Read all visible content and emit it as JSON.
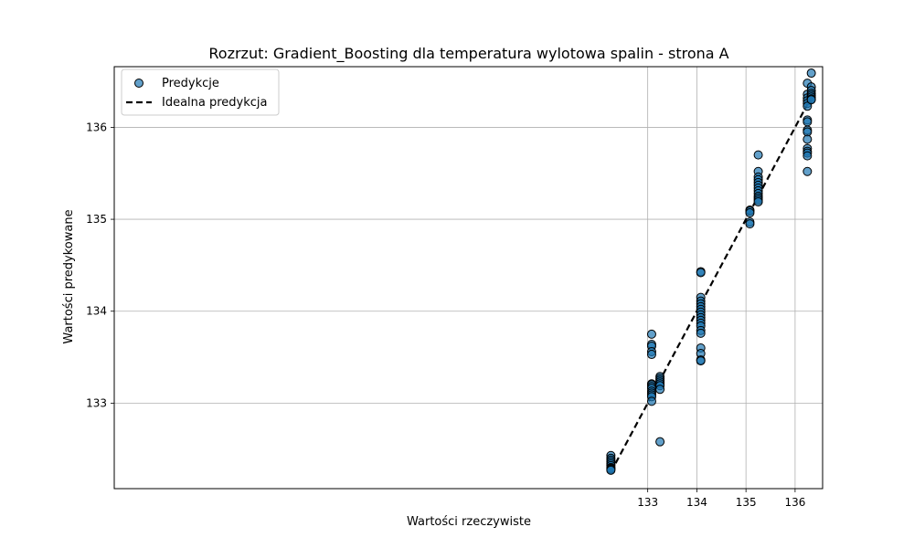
{
  "chart_data": {
    "type": "scatter",
    "title": "Rozrzut: Gradient_Boosting dla temperatura wylotowa spalin - strona A",
    "xlabel": "Wartości rzeczywiste",
    "ylabel": "Wartości predykowane",
    "xlim": [
      122.14,
      136.56
    ],
    "ylim": [
      132.07,
      136.66
    ],
    "xticks": [
      133,
      134,
      135,
      136
    ],
    "yticks": [
      133,
      134,
      135,
      136
    ],
    "grid": true,
    "legend": {
      "position": "top-left",
      "entries": [
        "Predykcje",
        "Idealna predykcja"
      ]
    },
    "colors": {
      "points": "#1f77b4",
      "point_edge": "#000000",
      "ideal_line": "#000000",
      "grid": "#b0b0b0"
    },
    "series": [
      {
        "name": "Predykcje",
        "type": "scatter",
        "points": [
          [
            132.25,
            132.43
          ],
          [
            132.25,
            132.4
          ],
          [
            132.25,
            132.38
          ],
          [
            132.25,
            132.36
          ],
          [
            132.25,
            132.34
          ],
          [
            132.25,
            132.32
          ],
          [
            132.25,
            132.3
          ],
          [
            132.25,
            132.29
          ],
          [
            132.25,
            132.28
          ],
          [
            132.25,
            132.27
          ],
          [
            133.08,
            133.75
          ],
          [
            133.08,
            133.64
          ],
          [
            133.08,
            133.62
          ],
          [
            133.08,
            133.56
          ],
          [
            133.08,
            133.53
          ],
          [
            133.08,
            133.21
          ],
          [
            133.08,
            133.2
          ],
          [
            133.08,
            133.18
          ],
          [
            133.08,
            133.16
          ],
          [
            133.08,
            133.13
          ],
          [
            133.08,
            133.11
          ],
          [
            133.08,
            133.09
          ],
          [
            133.08,
            133.07
          ],
          [
            133.08,
            133.02
          ],
          [
            133.25,
            133.29
          ],
          [
            133.25,
            133.27
          ],
          [
            133.25,
            133.25
          ],
          [
            133.25,
            133.23
          ],
          [
            133.25,
            133.21
          ],
          [
            133.25,
            133.19
          ],
          [
            133.25,
            133.15
          ],
          [
            133.25,
            132.58
          ],
          [
            134.08,
            134.43
          ],
          [
            134.08,
            134.42
          ],
          [
            134.08,
            134.15
          ],
          [
            134.08,
            134.11
          ],
          [
            134.08,
            134.08
          ],
          [
            134.08,
            134.05
          ],
          [
            134.08,
            134.02
          ],
          [
            134.08,
            133.99
          ],
          [
            134.08,
            133.96
          ],
          [
            134.08,
            133.93
          ],
          [
            134.08,
            133.9
          ],
          [
            134.08,
            133.87
          ],
          [
            134.08,
            133.84
          ],
          [
            134.08,
            133.79
          ],
          [
            134.08,
            133.76
          ],
          [
            134.08,
            133.6
          ],
          [
            134.08,
            133.54
          ],
          [
            134.08,
            133.47
          ],
          [
            134.08,
            133.46
          ],
          [
            135.08,
            135.1
          ],
          [
            135.08,
            135.09
          ],
          [
            135.08,
            135.07
          ],
          [
            135.08,
            134.97
          ],
          [
            135.08,
            134.95
          ],
          [
            135.25,
            135.7
          ],
          [
            135.25,
            135.52
          ],
          [
            135.25,
            135.46
          ],
          [
            135.25,
            135.43
          ],
          [
            135.25,
            135.4
          ],
          [
            135.25,
            135.37
          ],
          [
            135.25,
            135.34
          ],
          [
            135.25,
            135.31
          ],
          [
            135.25,
            135.28
          ],
          [
            135.25,
            135.25
          ],
          [
            135.25,
            135.23
          ],
          [
            135.25,
            135.21
          ],
          [
            135.25,
            135.19
          ],
          [
            136.25,
            136.48
          ],
          [
            136.25,
            136.36
          ],
          [
            136.25,
            136.32
          ],
          [
            136.25,
            136.29
          ],
          [
            136.25,
            136.26
          ],
          [
            136.25,
            136.23
          ],
          [
            136.25,
            136.08
          ],
          [
            136.25,
            136.06
          ],
          [
            136.25,
            135.97
          ],
          [
            136.25,
            135.95
          ],
          [
            136.25,
            135.87
          ],
          [
            136.25,
            135.77
          ],
          [
            136.25,
            135.74
          ],
          [
            136.25,
            135.72
          ],
          [
            136.25,
            135.69
          ],
          [
            136.25,
            135.52
          ],
          [
            136.33,
            136.59
          ],
          [
            136.33,
            136.44
          ],
          [
            136.33,
            136.4
          ],
          [
            136.33,
            136.37
          ],
          [
            136.33,
            136.35
          ],
          [
            136.33,
            136.33
          ],
          [
            136.33,
            136.31
          ],
          [
            136.33,
            136.3
          ]
        ]
      },
      {
        "name": "Idealna predykcja",
        "type": "line",
        "style": "dashed",
        "points": [
          [
            132.25,
            132.25
          ],
          [
            136.33,
            136.33
          ]
        ]
      }
    ]
  }
}
